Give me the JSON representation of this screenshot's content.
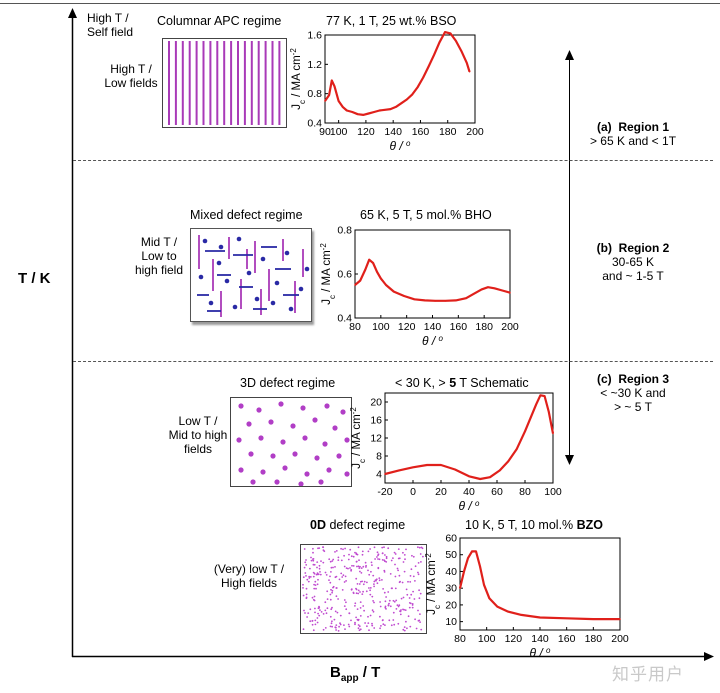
{
  "axes": {
    "y_label": "T / K",
    "x_label_main": "B",
    "x_label_sub": "app",
    "x_label_unit": " / T"
  },
  "panels": [
    {
      "id": "apc",
      "temp_label": "High T /\nSelf field",
      "field_label": "High T /\nLow fields",
      "regime": "Columnar APC regime",
      "chart_title": "77 K, 1 T, 25 wt.% BSO",
      "region_letter": "(a)",
      "region_name": "Region 1",
      "region_desc": "> 65 K and < 1T"
    },
    {
      "id": "mixed",
      "field_label": "Mid T /\nLow to\nhigh field",
      "regime": "Mixed defect regime",
      "chart_title": "65 K, 5 T, 5 mol.% BHO",
      "region_letter": "(b)",
      "region_name": "Region 2",
      "region_desc": "30-65 K\nand ~ 1-5 T"
    },
    {
      "id": "3d",
      "field_label": "Low T /\nMid to high\nfields",
      "regime": "3D defect regime",
      "chart_title_pre": "< 30 K, > ",
      "chart_title_bold": "5",
      "chart_title_post": " T Schematic",
      "region_letter": "(c)",
      "region_name": "Region 3",
      "region_desc": "< ~30 K and\n> ~ 5 T"
    },
    {
      "id": "0d",
      "field_label": "(Very) low T /\nHigh fields",
      "regime_bold": "0D",
      "regime_rest": " defect regime",
      "chart_title_pre": "10 K, 5 T, 10 mol.% ",
      "chart_title_bold": "BZO"
    }
  ],
  "chart_data": [
    {
      "type": "line",
      "title": "77 K, 1 T, 25 wt.% BSO",
      "xlabel": "θ / °",
      "ylabel": "Jc / MA cm⁻²",
      "xlim": [
        90,
        200
      ],
      "ylim": [
        0.4,
        1.6
      ],
      "xticks": [
        90,
        100,
        120,
        140,
        160,
        180,
        200
      ],
      "yticks": [
        0.4,
        0.8,
        1.2,
        1.6
      ],
      "color": "#e0201b",
      "x": [
        90,
        93,
        95,
        97,
        100,
        103,
        106,
        110,
        114,
        118,
        122,
        126,
        130,
        134,
        138,
        142,
        146,
        150,
        154,
        158,
        162,
        166,
        170,
        174,
        178,
        182,
        186,
        190,
        194,
        196
      ],
      "y": [
        0.7,
        0.78,
        0.98,
        0.9,
        0.7,
        0.62,
        0.57,
        0.55,
        0.52,
        0.51,
        0.53,
        0.55,
        0.57,
        0.58,
        0.59,
        0.62,
        0.67,
        0.72,
        0.79,
        0.89,
        1.02,
        1.17,
        1.33,
        1.5,
        1.64,
        1.62,
        1.52,
        1.38,
        1.22,
        1.1
      ]
    },
    {
      "type": "line",
      "title": "65 K, 5 T, 5 mol.% BHO",
      "xlabel": "θ / °",
      "ylabel": "Jc / MA cm⁻²",
      "xlim": [
        80,
        200
      ],
      "ylim": [
        0.4,
        0.8
      ],
      "xticks": [
        80,
        100,
        120,
        140,
        160,
        180,
        200
      ],
      "yticks": [
        0.4,
        0.6,
        0.8
      ],
      "color": "#e0201b",
      "x": [
        80,
        84,
        88,
        91,
        94,
        97,
        100,
        104,
        110,
        118,
        126,
        134,
        142,
        150,
        158,
        166,
        172,
        178,
        183,
        188,
        194,
        200
      ],
      "y": [
        0.55,
        0.57,
        0.62,
        0.665,
        0.65,
        0.61,
        0.58,
        0.55,
        0.52,
        0.5,
        0.485,
        0.48,
        0.478,
        0.478,
        0.48,
        0.49,
        0.51,
        0.53,
        0.54,
        0.535,
        0.525,
        0.515
      ]
    },
    {
      "type": "line",
      "title": "< 30 K, > 5 T Schematic",
      "xlabel": "θ / °",
      "ylabel": "Jc / MA cm⁻²",
      "xlim": [
        -20,
        100
      ],
      "ylim": [
        2,
        22
      ],
      "xticks": [
        -20,
        0,
        20,
        40,
        60,
        80,
        100
      ],
      "yticks": [
        4,
        8,
        12,
        16,
        20
      ],
      "color": "#e0201b",
      "x": [
        -20,
        -10,
        0,
        10,
        20,
        30,
        40,
        48,
        55,
        62,
        68,
        74,
        80,
        84,
        88,
        91,
        94,
        97,
        100
      ],
      "y": [
        4.0,
        4.8,
        5.5,
        6.0,
        6.0,
        5.0,
        3.5,
        2.9,
        3.3,
        4.8,
        6.8,
        9.5,
        13.5,
        16.5,
        19.5,
        21.5,
        21.3,
        17.8,
        13.0
      ]
    },
    {
      "type": "line",
      "title": "10 K, 5 T, 10 mol.% BZO",
      "xlabel": "θ / °",
      "ylabel": "Jc / MA cm⁻²",
      "xlim": [
        80,
        200
      ],
      "ylim": [
        5,
        60
      ],
      "xticks": [
        80,
        100,
        120,
        140,
        160,
        180,
        200
      ],
      "yticks": [
        10,
        20,
        30,
        40,
        50,
        60
      ],
      "color": "#e0201b",
      "x": [
        80,
        83,
        86,
        89,
        92,
        95,
        98,
        102,
        108,
        116,
        126,
        140,
        160,
        180,
        200
      ],
      "y": [
        30,
        40,
        48,
        52,
        52,
        43,
        32,
        24,
        19,
        16,
        14,
        12.5,
        12,
        11.5,
        11.5
      ]
    }
  ]
}
